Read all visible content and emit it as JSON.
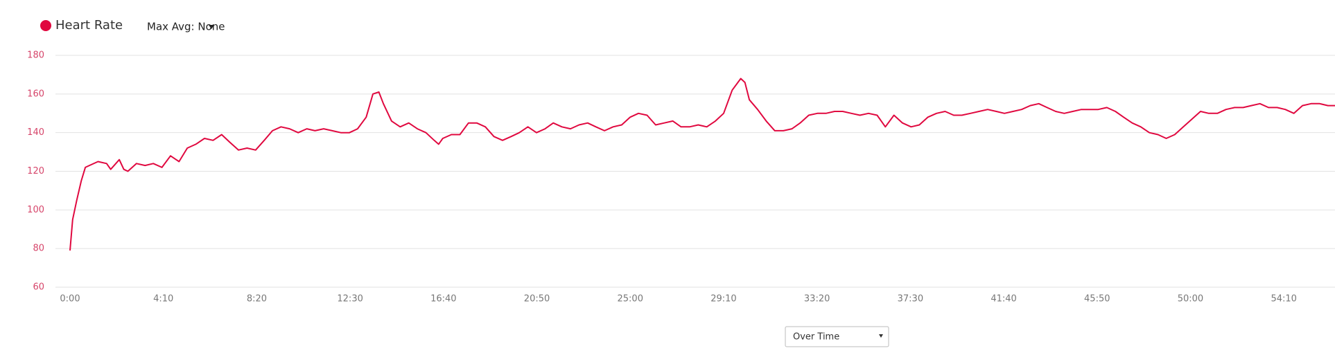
{
  "chart_data": {
    "type": "line",
    "series": [
      {
        "name": "Heart Rate",
        "color": "#e0083f",
        "x": [
          0,
          7,
          18,
          30,
          41,
          52,
          75,
          98,
          109,
          132,
          144,
          155,
          178,
          201,
          223,
          246,
          269,
          292,
          314,
          337,
          360,
          383,
          406,
          428,
          451,
          474,
          497,
          520,
          542,
          565,
          588,
          611,
          634,
          656,
          679,
          702,
          725,
          748,
          770,
          793,
          811,
          827,
          839,
          861,
          884,
          907,
          930,
          953,
          975,
          987,
          998,
          1021,
          1044,
          1067,
          1089,
          1112,
          1135,
          1158,
          1181,
          1203,
          1226,
          1249,
          1272,
          1294,
          1317,
          1340,
          1363,
          1386,
          1408,
          1431,
          1454,
          1477,
          1500,
          1522,
          1545,
          1568,
          1591,
          1614,
          1636,
          1659,
          1682,
          1705,
          1728,
          1750,
          1773,
          1796,
          1807,
          1819,
          1841,
          1864,
          1887,
          1910,
          1933,
          1955,
          1978,
          2001,
          2024,
          2047,
          2069,
          2092,
          2115,
          2138,
          2161,
          2183,
          2206,
          2229,
          2252,
          2274,
          2297,
          2320,
          2343,
          2366,
          2388,
          2411,
          2434,
          2457,
          2480,
          2502,
          2525,
          2548,
          2571,
          2594,
          2616,
          2639,
          2662,
          2685,
          2708,
          2730,
          2753,
          2776,
          2799,
          2821,
          2844,
          2867,
          2890,
          2913,
          2935,
          2958,
          2981,
          3004,
          3027,
          3049,
          3072,
          3095,
          3118,
          3141,
          3163,
          3186,
          3209,
          3232,
          3254,
          3277,
          3300,
          3323,
          3346,
          3368,
          3387
        ],
        "values": [
          79,
          95,
          105,
          115,
          122,
          123,
          125,
          124,
          121,
          126,
          121,
          120,
          124,
          123,
          124,
          122,
          128,
          125,
          132,
          134,
          137,
          136,
          139,
          135,
          131,
          132,
          131,
          136,
          141,
          143,
          142,
          140,
          142,
          141,
          142,
          141,
          140,
          140,
          142,
          148,
          160,
          161,
          155,
          146,
          143,
          145,
          142,
          140,
          136,
          134,
          137,
          139,
          139,
          145,
          145,
          143,
          138,
          136,
          138,
          140,
          143,
          140,
          142,
          145,
          143,
          142,
          144,
          145,
          143,
          141,
          143,
          144,
          148,
          150,
          149,
          144,
          145,
          146,
          143,
          143,
          144,
          143,
          146,
          150,
          162,
          168,
          166,
          157,
          152,
          146,
          141,
          141,
          142,
          145,
          149,
          150,
          150,
          151,
          151,
          150,
          149,
          150,
          149,
          143,
          149,
          145,
          143,
          144,
          148,
          150,
          151,
          149,
          149,
          150,
          151,
          152,
          151,
          150,
          151,
          152,
          154,
          155,
          153,
          151,
          150,
          151,
          152,
          152,
          152,
          153,
          151,
          148,
          145,
          143,
          140,
          139,
          137,
          139,
          143,
          147,
          151,
          150,
          150,
          152,
          153,
          153,
          154,
          155,
          153,
          153,
          152,
          150,
          154,
          155,
          155,
          154,
          154
        ]
      }
    ],
    "xlim": [
      -39,
      3387
    ],
    "xticks": [
      {
        "value": 0,
        "label": "0:00"
      },
      {
        "value": 250,
        "label": "4:10"
      },
      {
        "value": 500,
        "label": "8:20"
      },
      {
        "value": 750,
        "label": "12:30"
      },
      {
        "value": 1000,
        "label": "16:40"
      },
      {
        "value": 1250,
        "label": "20:50"
      },
      {
        "value": 1500,
        "label": "25:00"
      },
      {
        "value": 1750,
        "label": "29:10"
      },
      {
        "value": 2000,
        "label": "33:20"
      },
      {
        "value": 2250,
        "label": "37:30"
      },
      {
        "value": 2500,
        "label": "41:40"
      },
      {
        "value": 2750,
        "label": "45:50"
      },
      {
        "value": 3000,
        "label": "50:00"
      },
      {
        "value": 3250,
        "label": "54:10"
      }
    ],
    "ylim": [
      60,
      180
    ],
    "yticks": [
      60,
      80,
      100,
      120,
      140,
      160,
      180
    ],
    "grid": true
  },
  "controls": {
    "max_avg": "Max Avg: None",
    "view_select": "Over Time"
  }
}
